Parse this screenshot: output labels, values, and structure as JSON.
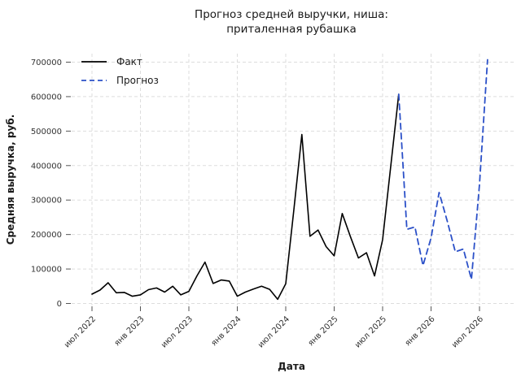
{
  "chart_data": {
    "type": "line",
    "title_lines": [
      "Прогноз средней выручки, ниша:",
      "приталенная рубашка"
    ],
    "xlabel": "Дата",
    "ylabel": "Средняя выручка, руб.",
    "x_tick_labels": [
      "июл 2022",
      "янв 2023",
      "июл 2023",
      "янв 2024",
      "июл 2024",
      "янв 2025",
      "июл 2025",
      "янв 2026",
      "июл 2026"
    ],
    "x_tick_month_indices": [
      0,
      6,
      12,
      18,
      24,
      30,
      36,
      42,
      48
    ],
    "y_ticks": [
      0,
      100000,
      200000,
      300000,
      400000,
      500000,
      600000,
      700000
    ],
    "ylim": [
      0,
      700000
    ],
    "months_start": "2022-07",
    "grid": true,
    "grid_style": "dashed",
    "legend_position": "upper-left",
    "series": [
      {
        "name": "Факт",
        "style": "solid",
        "color": "#000000",
        "start_month_index": 0,
        "values": [
          27000,
          39000,
          60000,
          31000,
          32000,
          21000,
          25000,
          40000,
          45000,
          33000,
          50000,
          25000,
          35000,
          80000,
          120000,
          58000,
          68000,
          65000,
          21000,
          33000,
          42000,
          50000,
          41000,
          12000,
          57000,
          270000,
          490000,
          195000,
          213000,
          165000,
          138000,
          261000,
          195000,
          132000,
          147000,
          80000,
          185000,
          396000,
          607000
        ]
      },
      {
        "name": "Прогноз",
        "style": "dashed",
        "color": "#2b50c8",
        "start_month_index": 38,
        "values": [
          607000,
          215000,
          222000,
          110000,
          190000,
          322000,
          240000,
          150000,
          158000,
          70000,
          345000,
          707000
        ]
      }
    ]
  },
  "layout_hints": {
    "background": "#ffffff",
    "grid_color": "#dddddd",
    "tick_color": "#333333"
  }
}
